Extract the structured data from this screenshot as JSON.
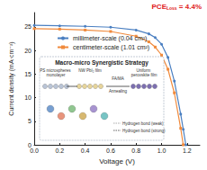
{
  "chart_data": {
    "type": "line",
    "xlabel": "Voltage (V)",
    "ylabel": "Current density (mA·cm⁻²)",
    "x": [
      0,
      0.2,
      0.4,
      0.6,
      0.8,
      0.9,
      0.95,
      1.0,
      1.05,
      1.1,
      1.15,
      1.17,
      1.19
    ],
    "series": [
      {
        "name": "millimeter-scale (0.04 cm²)",
        "color": "#4a7fc1",
        "marker": "circle",
        "values": [
          25.3,
          25.2,
          25.1,
          24.9,
          24.3,
          23.5,
          22.7,
          21.3,
          18.5,
          13.5,
          6.5,
          3.3,
          0
        ]
      },
      {
        "name": "centimeter-scale (1.01 cm²)",
        "color": "#f08a3c",
        "marker": "rect",
        "values": [
          24.6,
          24.5,
          24.3,
          24.0,
          23.0,
          21.8,
          20.7,
          19.0,
          16.0,
          11.0,
          3.5,
          0,
          null
        ]
      }
    ],
    "xlim": [
      0,
      1.3
    ],
    "xticks": [
      {
        "value": 0,
        "label": "0.0"
      },
      {
        "value": 0.2,
        "label": "0.2"
      },
      {
        "value": 0.4,
        "label": "0.4"
      },
      {
        "value": 0.6,
        "label": "0.6"
      },
      {
        "value": 0.8,
        "label": "0.8"
      },
      {
        "value": 1.0,
        "label": "1.0"
      },
      {
        "value": 1.2,
        "label": "1.2"
      }
    ],
    "ylim": [
      0,
      28
    ],
    "yticks": [
      0,
      5,
      10,
      15,
      20,
      25
    ],
    "legend": "upper left",
    "grid": false,
    "annotations": [
      {
        "text": "PCE",
        "sub": "Loss",
        "suffix": " = 4.4%",
        "color": "#e02020"
      }
    ],
    "inset": {
      "title": "Macro-micro Synergistic Strategy",
      "steps": [
        "PS microspheres monolayer",
        "NW PbI₂ film",
        "Uniform perovskite film"
      ],
      "arrow_labels": [
        "FA/MA",
        "Annealing"
      ],
      "notes": [
        "Hydrogen bond (weak)",
        "Hydrogen bond (strong)"
      ]
    }
  }
}
